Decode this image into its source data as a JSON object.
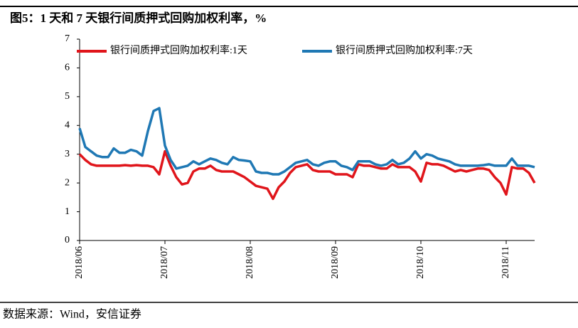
{
  "chart_data": {
    "type": "line",
    "title": "图5：1 天和 7 天银行间质押式回购加权利率，%",
    "source": "数据来源：Wind，安信证券",
    "categories": [
      "2018/06",
      null,
      null,
      null,
      null,
      null,
      null,
      null,
      null,
      null,
      null,
      null,
      null,
      null,
      null,
      "2018/07",
      null,
      null,
      null,
      null,
      null,
      null,
      null,
      null,
      null,
      null,
      null,
      null,
      null,
      null,
      "2018/08",
      null,
      null,
      null,
      null,
      null,
      null,
      null,
      null,
      null,
      null,
      null,
      null,
      null,
      null,
      "2018/09",
      null,
      null,
      null,
      null,
      null,
      null,
      null,
      null,
      null,
      null,
      null,
      null,
      null,
      null,
      "2018/10",
      null,
      null,
      null,
      null,
      null,
      null,
      null,
      null,
      null,
      null,
      null,
      null,
      null,
      null,
      "2018/11",
      null,
      null,
      null,
      null,
      null
    ],
    "series": [
      {
        "name": "银行间质押式回购加权利率:1天",
        "color": "#e0151b",
        "values": [
          3.0,
          2.8,
          2.65,
          2.6,
          2.6,
          2.6,
          2.6,
          2.6,
          2.62,
          2.6,
          2.62,
          2.6,
          2.6,
          2.55,
          2.3,
          3.1,
          2.6,
          2.2,
          1.95,
          2.0,
          2.4,
          2.5,
          2.5,
          2.6,
          2.45,
          2.4,
          2.4,
          2.4,
          2.3,
          2.2,
          2.05,
          1.9,
          1.85,
          1.8,
          1.45,
          1.85,
          2.05,
          2.35,
          2.55,
          2.6,
          2.65,
          2.45,
          2.4,
          2.4,
          2.4,
          2.3,
          2.3,
          2.3,
          2.2,
          2.65,
          2.6,
          2.6,
          2.55,
          2.5,
          2.5,
          2.65,
          2.55,
          2.55,
          2.55,
          2.4,
          2.05,
          2.7,
          2.65,
          2.65,
          2.6,
          2.5,
          2.4,
          2.45,
          2.4,
          2.45,
          2.5,
          2.5,
          2.45,
          2.2,
          2.0,
          1.6,
          2.55,
          2.5,
          2.5,
          2.35,
          2.0
        ]
      },
      {
        "name": "银行间质押式回购加权利率:7天",
        "color": "#1f78b4",
        "values": [
          3.9,
          3.25,
          3.1,
          2.95,
          2.9,
          2.9,
          3.2,
          3.05,
          3.05,
          3.15,
          3.1,
          2.95,
          3.8,
          4.5,
          4.6,
          3.3,
          2.8,
          2.5,
          2.55,
          2.6,
          2.75,
          2.65,
          2.75,
          2.85,
          2.8,
          2.7,
          2.65,
          2.9,
          2.8,
          2.78,
          2.75,
          2.4,
          2.35,
          2.35,
          2.3,
          2.3,
          2.4,
          2.55,
          2.7,
          2.75,
          2.8,
          2.65,
          2.6,
          2.7,
          2.75,
          2.75,
          2.6,
          2.55,
          2.45,
          2.75,
          2.75,
          2.75,
          2.65,
          2.6,
          2.65,
          2.8,
          2.65,
          2.7,
          2.85,
          3.1,
          2.85,
          3.0,
          2.95,
          2.85,
          2.8,
          2.75,
          2.65,
          2.6,
          2.6,
          2.6,
          2.6,
          2.62,
          2.65,
          2.6,
          2.6,
          2.6,
          2.85,
          2.6,
          2.6,
          2.6,
          2.55
        ]
      }
    ],
    "ylim": [
      0,
      7
    ],
    "yticks": [
      0,
      1,
      2,
      3,
      4,
      5,
      6,
      7
    ],
    "grid": false
  }
}
